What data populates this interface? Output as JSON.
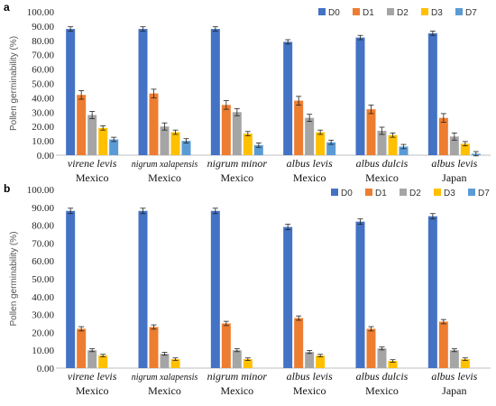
{
  "chart_data": [
    {
      "type": "bar",
      "panel_label": "a",
      "ylabel": "Pollen germinability (%)",
      "ylim": [
        0,
        100
      ],
      "yticks": [
        "0.00",
        "10.00",
        "20.00",
        "30.00",
        "40.00",
        "50.00",
        "60.00",
        "70.00",
        "80.00",
        "90.00",
        "100.00"
      ],
      "grid": false,
      "legend_position": "top-right",
      "categories": [
        {
          "name": "virene levis",
          "origin": "Mexico"
        },
        {
          "name": "nigrum xalapensis",
          "origin": "Mexico"
        },
        {
          "name": "nigrum minor",
          "origin": "Mexico"
        },
        {
          "name": "albus levis",
          "origin": "Mexico"
        },
        {
          "name": "albus dulcis",
          "origin": "Mexico"
        },
        {
          "name": "albus levis",
          "origin": "Japan"
        }
      ],
      "series": [
        {
          "name": "D0",
          "color": "#4472C4",
          "values": [
            88,
            88,
            88,
            79,
            82,
            85
          ],
          "errors": [
            1.5,
            1.5,
            1.5,
            1.5,
            1.5,
            1.5
          ]
        },
        {
          "name": "D1",
          "color": "#ED7D31",
          "values": [
            42,
            43,
            35,
            38,
            32,
            26
          ],
          "errors": [
            3,
            3,
            3,
            3,
            3,
            3
          ]
        },
        {
          "name": "D2",
          "color": "#A5A5A5",
          "values": [
            28,
            20,
            30,
            26,
            17,
            13
          ],
          "errors": [
            2.5,
            2.5,
            2.5,
            2.5,
            2.5,
            2.5
          ]
        },
        {
          "name": "D3",
          "color": "#FFC000",
          "values": [
            19,
            16,
            15,
            16,
            14,
            8
          ],
          "errors": [
            1.5,
            1.5,
            1.5,
            1.5,
            1.5,
            1.5
          ]
        },
        {
          "name": "D7",
          "color": "#5B9BD5",
          "values": [
            11,
            10,
            7,
            9,
            6,
            1
          ],
          "errors": [
            1.5,
            1.5,
            1.5,
            1.5,
            1.5,
            1.5
          ]
        }
      ]
    },
    {
      "type": "bar",
      "panel_label": "b",
      "ylabel": "Pollen germinability (%)",
      "ylim": [
        0,
        100
      ],
      "yticks": [
        "0.00",
        "10.00",
        "20.00",
        "30.00",
        "40.00",
        "50.00",
        "60.00",
        "70.00",
        "80.00",
        "90.00",
        "100.00"
      ],
      "grid": false,
      "legend_position": "top-right",
      "categories": [
        {
          "name": "virene levis",
          "origin": "Mexico"
        },
        {
          "name": "nigrum xalapensis",
          "origin": "Mexico"
        },
        {
          "name": "nigrum minor",
          "origin": "Mexico"
        },
        {
          "name": "albus levis",
          "origin": "Mexico"
        },
        {
          "name": "albus dulcis",
          "origin": "Mexico"
        },
        {
          "name": "albus levis",
          "origin": "Japan"
        }
      ],
      "series": [
        {
          "name": "D0",
          "color": "#4472C4",
          "values": [
            88,
            88,
            88,
            79,
            82,
            85
          ],
          "errors": [
            1.5,
            1.5,
            1.5,
            1.5,
            1.5,
            1.5
          ]
        },
        {
          "name": "D1",
          "color": "#ED7D31",
          "values": [
            22,
            23,
            25,
            28,
            22,
            26
          ],
          "errors": [
            1.2,
            1.2,
            1.2,
            1.2,
            1.2,
            1.2
          ]
        },
        {
          "name": "D2",
          "color": "#A5A5A5",
          "values": [
            10,
            8,
            10,
            9,
            11,
            10
          ],
          "errors": [
            0.8,
            0.8,
            0.8,
            0.8,
            0.8,
            0.8
          ]
        },
        {
          "name": "D3",
          "color": "#FFC000",
          "values": [
            7,
            5,
            5,
            7,
            4,
            5
          ],
          "errors": [
            0.7,
            0.7,
            0.7,
            0.7,
            0.7,
            0.7
          ]
        },
        {
          "name": "D7",
          "color": "#5B9BD5",
          "values": [
            0,
            0,
            0,
            0,
            0,
            0
          ],
          "errors": [
            0,
            0,
            0,
            0,
            0,
            0
          ]
        }
      ]
    }
  ]
}
